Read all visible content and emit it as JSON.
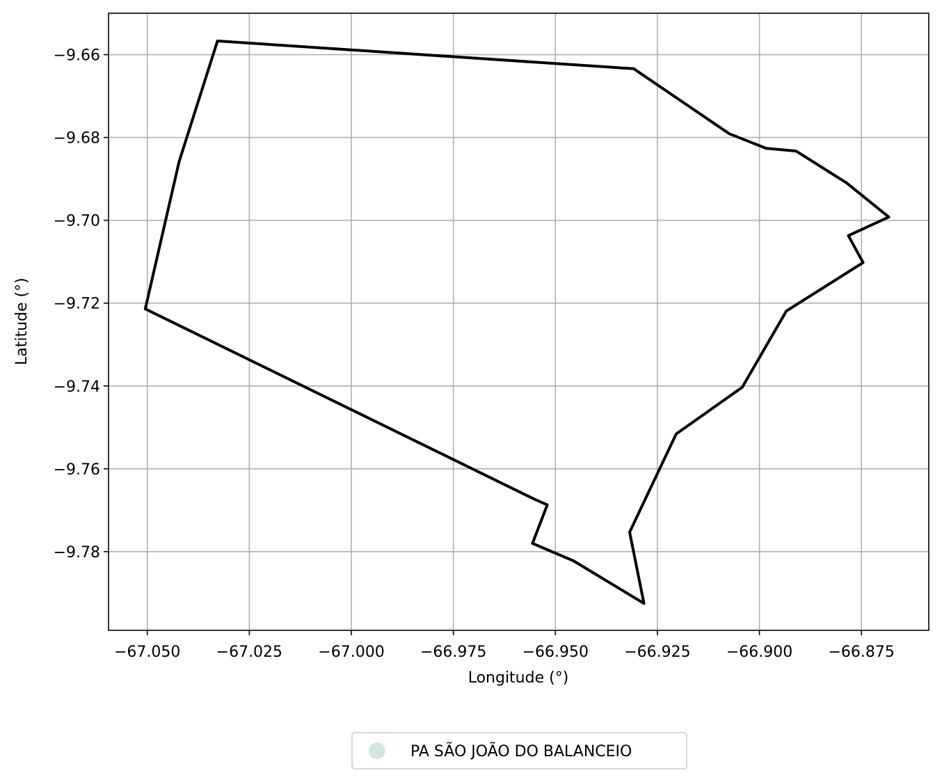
{
  "chart_data": {
    "type": "map",
    "title": "",
    "xlabel": "Longitude (°)",
    "ylabel": "Latitude (°)",
    "xlim": [
      -67.0595,
      -66.8585
    ],
    "ylim": [
      -9.799,
      -9.65
    ],
    "x_ticks": [
      -67.05,
      -67.025,
      -67.0,
      -66.975,
      -66.95,
      -66.925,
      -66.9,
      -66.875
    ],
    "x_tick_labels": [
      "−67.050",
      "−67.025",
      "−67.000",
      "−66.975",
      "−66.950",
      "−66.925",
      "−66.900",
      "−66.875"
    ],
    "y_ticks": [
      -9.66,
      -9.68,
      -9.7,
      -9.72,
      -9.74,
      -9.76,
      -9.78
    ],
    "y_tick_labels": [
      "−9.66",
      "−9.68",
      "−9.70",
      "−9.72",
      "−9.74",
      "−9.76",
      "−9.78"
    ],
    "grid": true,
    "legend": {
      "placement": "bottom-center",
      "entries": [
        {
          "label": "PA SÃO JOÃO DO BALANCEIO",
          "color": "#cfe9dc"
        }
      ]
    },
    "series": [
      {
        "name": "PA SÃO JOÃO DO BALANCEIO",
        "edge_color": "#000000",
        "fill_color": "#cfe9dc",
        "coordinates": [
          [
            -67.0328,
            -9.6567
          ],
          [
            -66.9308,
            -9.6634
          ],
          [
            -66.9074,
            -9.6791
          ],
          [
            -66.8984,
            -9.6826
          ],
          [
            -66.891,
            -9.6833
          ],
          [
            -66.8786,
            -9.691
          ],
          [
            -66.8683,
            -9.6992
          ],
          [
            -66.8782,
            -9.7037
          ],
          [
            -66.8746,
            -9.7102
          ],
          [
            -66.8934,
            -9.7219
          ],
          [
            -66.9042,
            -9.7403
          ],
          [
            -66.9204,
            -9.7516
          ],
          [
            -66.9318,
            -9.7753
          ],
          [
            -66.9283,
            -9.7925
          ],
          [
            -66.9456,
            -9.7822
          ],
          [
            -66.9556,
            -9.778
          ],
          [
            -66.952,
            -9.7687
          ],
          [
            -66.955,
            -9.7674
          ],
          [
            -67.0505,
            -9.7214
          ],
          [
            -67.0422,
            -9.6858
          ],
          [
            -67.0328,
            -9.6567
          ]
        ]
      }
    ]
  }
}
